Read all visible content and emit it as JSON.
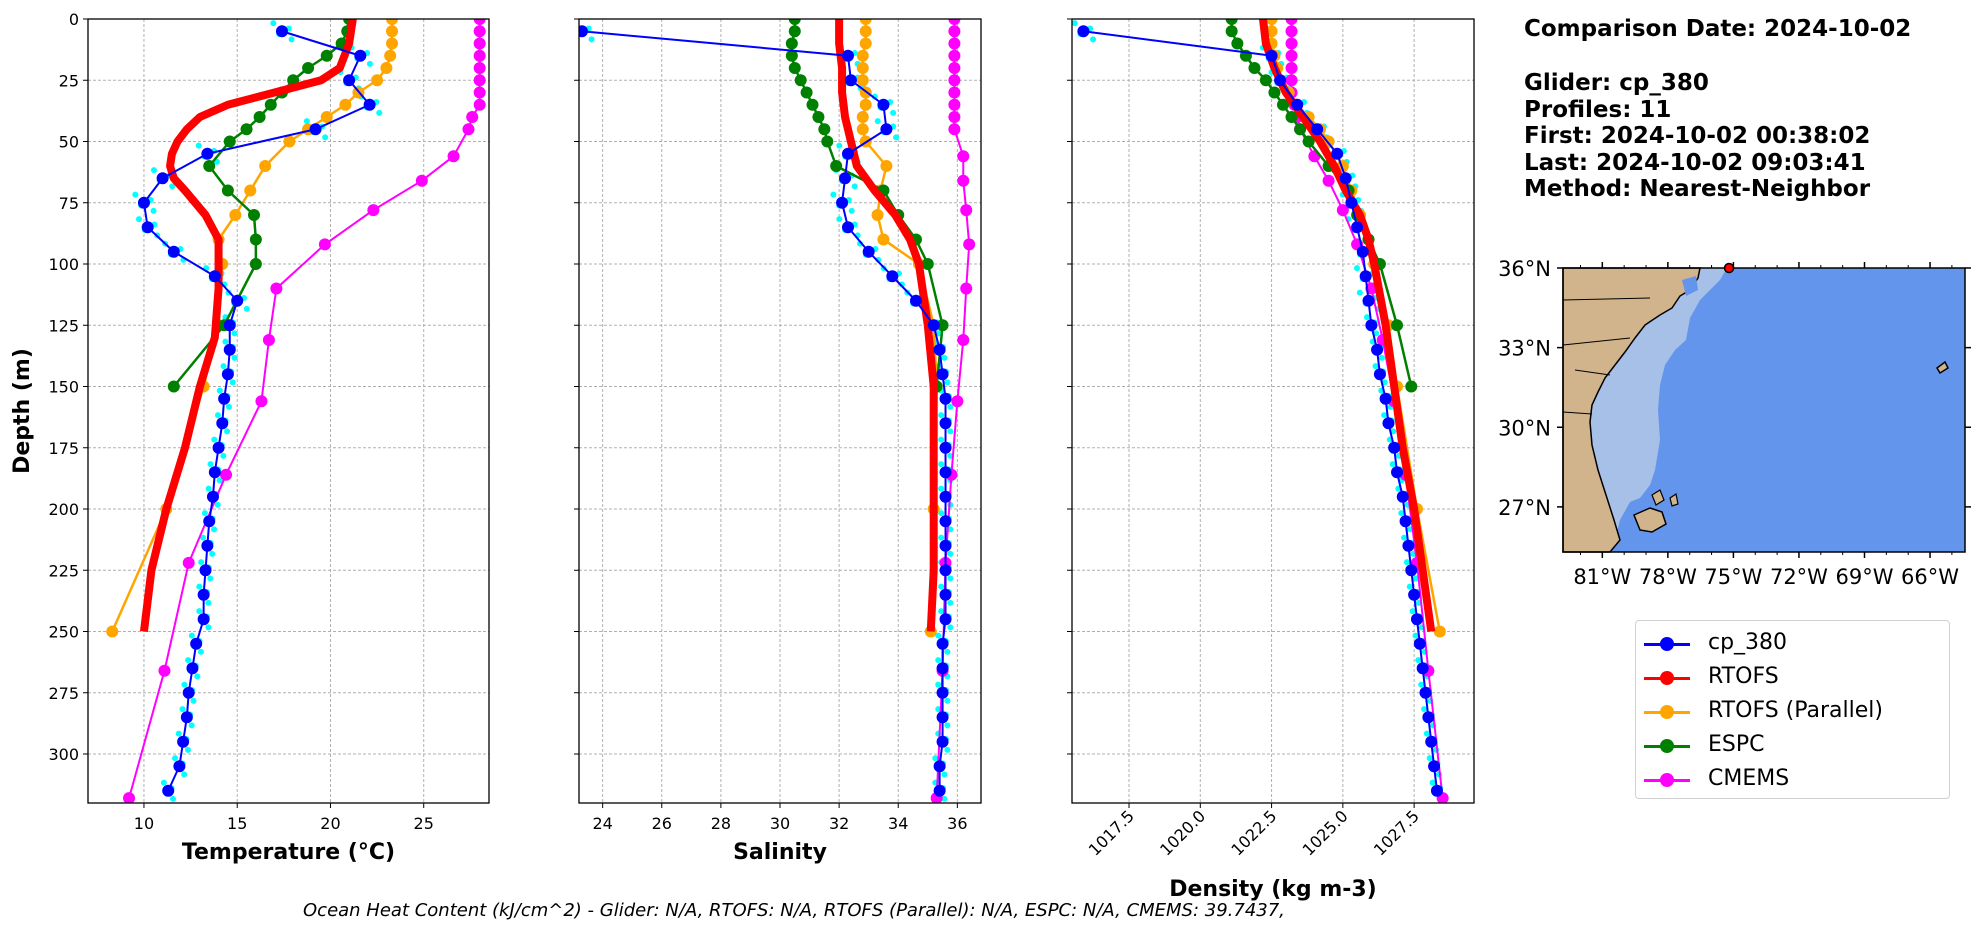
{
  "info": {
    "comparison_date": "Comparison Date: 2024-10-02",
    "glider": "Glider: cp_380",
    "profiles": "Profiles: 11",
    "first": "First: 2024-10-02 00:38:02",
    "last": "Last: 2024-10-02 09:03:41",
    "method": "Method: Nearest-Neighbor"
  },
  "footer": "Ocean Heat Content (kJ/cm^2) - Glider: N/A,  RTOFS: N/A,  RTOFS (Parallel): N/A,  ESPC: N/A,  CMEMS: 39.7437,",
  "colors": {
    "cp_380": "#0000ff",
    "RTOFS": "#ff0000",
    "RTOFS (Parallel)": "#ffa500",
    "ESPC": "#008000",
    "CMEMS": "#ff00ff",
    "glider_raw": "#00ffff",
    "ocean": "#6495ed",
    "shelf": "#a7c0e8",
    "land": "#d2b48c"
  },
  "legend": [
    "cp_380",
    "RTOFS",
    "RTOFS (Parallel)",
    "ESPC",
    "CMEMS"
  ],
  "map": {
    "lat_ticks": [
      "36°N",
      "33°N",
      "30°N",
      "27°N"
    ],
    "lon_ticks": [
      "81°W",
      "78°W",
      "75°W",
      "72°W",
      "69°W",
      "66°W"
    ],
    "glider_marker": {
      "lon": -75.2,
      "lat": 36.0
    }
  },
  "chart_data": [
    {
      "type": "line",
      "xlabel": "Temperature (°C)",
      "ylabel": "Depth (m)",
      "xlim": [
        7,
        28.5
      ],
      "ylim": [
        320,
        0
      ],
      "xticks": [
        10,
        15,
        20,
        25
      ],
      "yticks": [
        0,
        25,
        50,
        75,
        100,
        125,
        150,
        175,
        200,
        225,
        250,
        275,
        300
      ],
      "grid": true,
      "series": [
        {
          "name": "cp_380",
          "depth": [
            5,
            15,
            25,
            35,
            45,
            55,
            65,
            75,
            85,
            95,
            105,
            115,
            125,
            135,
            145,
            155,
            165,
            175,
            185,
            195,
            205,
            215,
            225,
            235,
            245,
            255,
            265,
            275,
            285,
            295,
            305,
            315
          ],
          "values": [
            17.4,
            21.6,
            21.0,
            22.1,
            19.2,
            13.4,
            11.0,
            10.0,
            10.2,
            11.6,
            13.8,
            15.0,
            14.6,
            14.6,
            14.5,
            14.3,
            14.2,
            14.0,
            13.8,
            13.7,
            13.5,
            13.4,
            13.3,
            13.2,
            13.2,
            12.8,
            12.6,
            12.4,
            12.3,
            12.1,
            11.9,
            11.3
          ]
        },
        {
          "name": "RTOFS",
          "depth": [
            0,
            10,
            20,
            25,
            30,
            35,
            40,
            45,
            50,
            55,
            60,
            65,
            70,
            80,
            90,
            100,
            110,
            120,
            130,
            150,
            175,
            200,
            225,
            250
          ],
          "values": [
            21.2,
            21.0,
            20.5,
            19.5,
            17.0,
            14.5,
            13.0,
            12.3,
            11.8,
            11.5,
            11.4,
            11.6,
            12.2,
            13.3,
            14.0,
            14.0,
            14.0,
            13.9,
            13.8,
            13.0,
            12.2,
            11.2,
            10.4,
            10.0
          ]
        },
        {
          "name": "RTOFS (Parallel)",
          "depth": [
            0,
            5,
            10,
            15,
            20,
            25,
            30,
            35,
            40,
            45,
            50,
            60,
            70,
            80,
            90,
            100,
            125,
            150,
            200,
            250
          ],
          "values": [
            23.3,
            23.3,
            23.3,
            23.2,
            23.0,
            22.5,
            21.5,
            20.8,
            19.8,
            18.8,
            17.8,
            16.5,
            15.7,
            14.9,
            14.0,
            14.2,
            14.0,
            13.2,
            11.2,
            8.3
          ]
        },
        {
          "name": "ESPC",
          "depth": [
            0,
            5,
            10,
            15,
            20,
            25,
            30,
            35,
            40,
            45,
            50,
            60,
            70,
            80,
            90,
            100,
            125,
            150
          ],
          "values": [
            21.0,
            20.9,
            20.6,
            19.8,
            18.8,
            18.0,
            17.4,
            16.8,
            16.2,
            15.5,
            14.6,
            13.5,
            14.5,
            15.9,
            16.0,
            16.0,
            14.3,
            11.6
          ]
        },
        {
          "name": "CMEMS",
          "depth": [
            0,
            5,
            10,
            15,
            20,
            25,
            30,
            35,
            40,
            45,
            56,
            66,
            78,
            92,
            110,
            131,
            156,
            186,
            222,
            266,
            318
          ],
          "values": [
            28.0,
            28.0,
            28.0,
            28.0,
            28.0,
            28.0,
            28.0,
            28.0,
            27.6,
            27.4,
            26.6,
            24.9,
            22.3,
            19.7,
            17.1,
            16.7,
            16.3,
            14.4,
            12.4,
            11.1,
            9.2
          ]
        }
      ]
    },
    {
      "type": "line",
      "xlabel": "Salinity",
      "xlim": [
        23.2,
        36.8
      ],
      "ylim": [
        320,
        0
      ],
      "xticks": [
        24,
        26,
        28,
        30,
        32,
        34,
        36
      ],
      "grid": true,
      "series": [
        {
          "name": "cp_380",
          "depth": [
            5,
            15,
            25,
            35,
            45,
            55,
            65,
            75,
            85,
            95,
            105,
            115,
            125,
            135,
            145,
            155,
            165,
            175,
            185,
            195,
            205,
            215,
            225,
            235,
            245,
            255,
            265,
            275,
            285,
            295,
            305,
            315
          ],
          "values": [
            23.3,
            32.3,
            32.4,
            33.5,
            33.6,
            32.3,
            32.2,
            32.1,
            32.3,
            33.0,
            33.8,
            34.6,
            35.2,
            35.4,
            35.5,
            35.6,
            35.6,
            35.6,
            35.6,
            35.6,
            35.6,
            35.6,
            35.6,
            35.6,
            35.6,
            35.5,
            35.5,
            35.5,
            35.5,
            35.5,
            35.4,
            35.4
          ]
        },
        {
          "name": "RTOFS",
          "depth": [
            0,
            10,
            20,
            30,
            40,
            50,
            60,
            70,
            80,
            90,
            100,
            125,
            150,
            175,
            200,
            225,
            250
          ],
          "values": [
            32.0,
            32.0,
            32.1,
            32.1,
            32.2,
            32.4,
            32.6,
            33.2,
            33.9,
            34.4,
            34.7,
            35.0,
            35.2,
            35.2,
            35.2,
            35.2,
            35.1
          ]
        },
        {
          "name": "RTOFS (Parallel)",
          "depth": [
            0,
            5,
            10,
            15,
            20,
            25,
            30,
            35,
            40,
            45,
            50,
            60,
            70,
            80,
            90,
            100,
            125,
            150,
            200,
            250
          ],
          "values": [
            32.9,
            32.9,
            32.9,
            32.8,
            32.8,
            32.8,
            32.9,
            32.9,
            32.8,
            32.8,
            32.9,
            33.6,
            33.4,
            33.3,
            33.5,
            34.7,
            35.2,
            35.3,
            35.2,
            35.1
          ]
        },
        {
          "name": "ESPC",
          "depth": [
            0,
            5,
            10,
            15,
            20,
            25,
            30,
            35,
            40,
            45,
            50,
            60,
            70,
            80,
            90,
            100,
            125,
            150
          ],
          "values": [
            30.5,
            30.5,
            30.4,
            30.4,
            30.5,
            30.7,
            30.9,
            31.1,
            31.3,
            31.5,
            31.6,
            31.9,
            33.5,
            34.0,
            34.6,
            35.0,
            35.5,
            35.3
          ]
        },
        {
          "name": "CMEMS",
          "depth": [
            0,
            5,
            10,
            15,
            20,
            25,
            30,
            35,
            40,
            45,
            56,
            66,
            78,
            92,
            110,
            131,
            156,
            186,
            222,
            266,
            318
          ],
          "values": [
            35.9,
            35.9,
            35.9,
            35.9,
            35.9,
            35.9,
            35.9,
            35.9,
            35.9,
            35.9,
            36.2,
            36.2,
            36.3,
            36.4,
            36.3,
            36.2,
            36.0,
            35.8,
            35.6,
            35.5,
            35.3
          ]
        }
      ]
    },
    {
      "type": "line",
      "xlabel": "Density (kg m-3)",
      "xlim": [
        1015.5,
        1029.6
      ],
      "ylim": [
        320,
        0
      ],
      "xticks": [
        1017.5,
        1020.0,
        1022.5,
        1025.0,
        1027.5
      ],
      "grid": true,
      "series": [
        {
          "name": "cp_380",
          "depth": [
            5,
            15,
            25,
            35,
            45,
            55,
            65,
            75,
            85,
            95,
            105,
            115,
            125,
            135,
            145,
            155,
            165,
            175,
            185,
            195,
            205,
            215,
            225,
            235,
            245,
            255,
            265,
            275,
            285,
            295,
            305,
            315
          ],
          "values": [
            1015.9,
            1022.5,
            1022.8,
            1023.4,
            1024.1,
            1024.8,
            1025.1,
            1025.3,
            1025.5,
            1025.7,
            1025.8,
            1025.9,
            1026.0,
            1026.2,
            1026.3,
            1026.5,
            1026.6,
            1026.8,
            1026.9,
            1027.1,
            1027.2,
            1027.3,
            1027.4,
            1027.5,
            1027.6,
            1027.7,
            1027.8,
            1027.9,
            1028.0,
            1028.1,
            1028.2,
            1028.3
          ]
        },
        {
          "name": "RTOFS",
          "depth": [
            0,
            10,
            20,
            30,
            40,
            50,
            60,
            70,
            80,
            90,
            100,
            125,
            150,
            175,
            200,
            225,
            250
          ],
          "values": [
            1022.2,
            1022.3,
            1022.6,
            1023.0,
            1023.6,
            1024.2,
            1024.7,
            1025.1,
            1025.6,
            1025.9,
            1026.1,
            1026.5,
            1026.8,
            1027.1,
            1027.5,
            1027.8,
            1028.1
          ]
        },
        {
          "name": "RTOFS (Parallel)",
          "depth": [
            0,
            5,
            10,
            15,
            20,
            25,
            30,
            35,
            40,
            45,
            50,
            60,
            70,
            80,
            90,
            100,
            125,
            150,
            200,
            250
          ],
          "values": [
            1022.5,
            1022.5,
            1022.5,
            1022.6,
            1022.7,
            1022.8,
            1023.1,
            1023.4,
            1023.8,
            1024.2,
            1024.5,
            1025.0,
            1025.3,
            1025.6,
            1025.9,
            1026.1,
            1026.6,
            1026.9,
            1027.6,
            1028.4
          ]
        },
        {
          "name": "ESPC",
          "depth": [
            0,
            5,
            10,
            15,
            20,
            25,
            30,
            35,
            40,
            45,
            50,
            60,
            70,
            80,
            90,
            100,
            125,
            150
          ],
          "values": [
            1021.1,
            1021.1,
            1021.3,
            1021.6,
            1021.9,
            1022.3,
            1022.6,
            1022.9,
            1023.2,
            1023.5,
            1023.8,
            1024.5,
            1025.2,
            1025.5,
            1025.9,
            1026.3,
            1026.9,
            1027.4
          ]
        },
        {
          "name": "CMEMS",
          "depth": [
            0,
            5,
            10,
            15,
            20,
            25,
            30,
            35,
            40,
            45,
            56,
            66,
            78,
            92,
            110,
            131,
            156,
            186,
            222,
            266,
            318
          ],
          "values": [
            1023.2,
            1023.2,
            1023.2,
            1023.2,
            1023.2,
            1023.2,
            1023.2,
            1023.3,
            1023.4,
            1023.5,
            1024.0,
            1024.5,
            1025.0,
            1025.5,
            1026.0,
            1026.4,
            1026.8,
            1027.2,
            1027.6,
            1028.0,
            1028.5
          ]
        }
      ]
    }
  ]
}
